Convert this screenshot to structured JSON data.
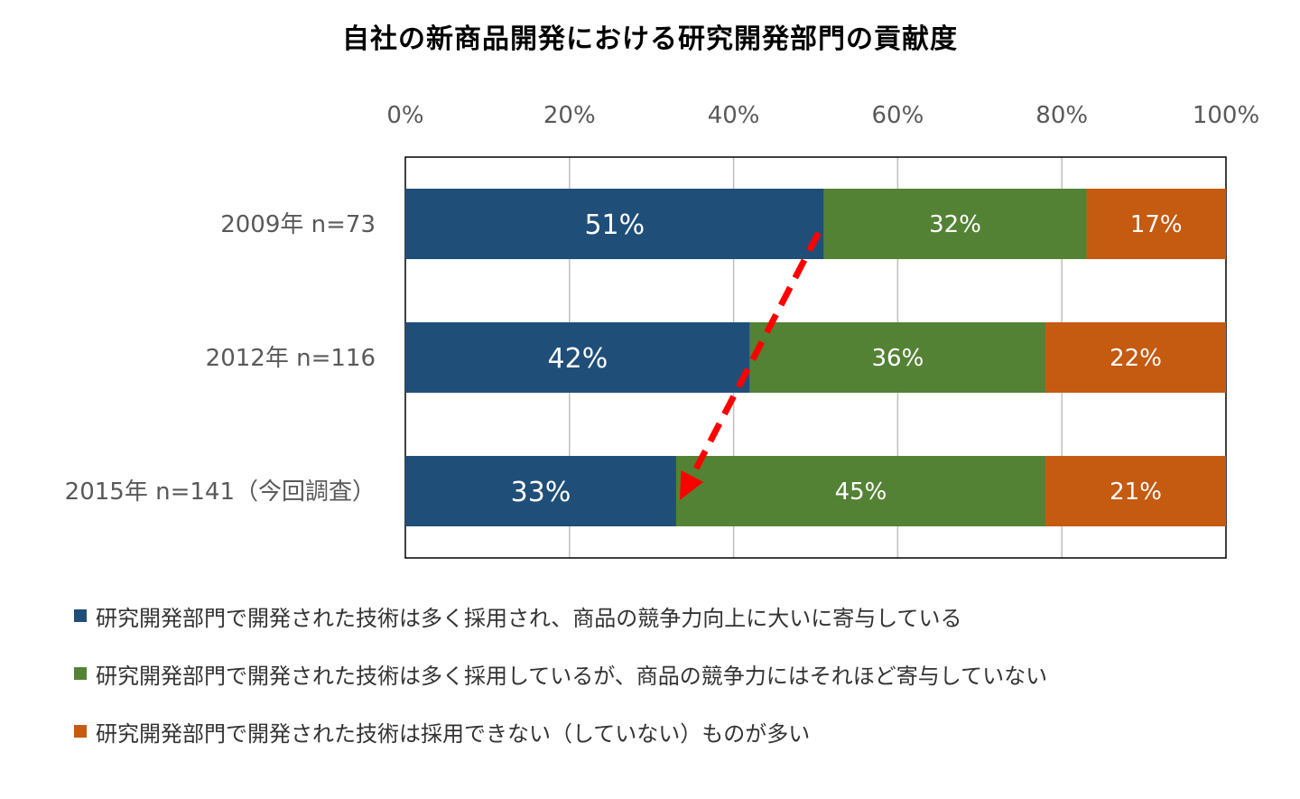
{
  "chart_data": {
    "type": "bar",
    "orientation": "horizontal",
    "stacked": true,
    "percent": true,
    "title": "自社の新商品開発における研究開発部門の貢献度",
    "categories": [
      "2009年 n=73",
      "2012年 n=116",
      "2015年 n=141（今回調査）"
    ],
    "xlim": [
      0,
      100
    ],
    "xticks": [
      "0%",
      "20%",
      "40%",
      "60%",
      "80%",
      "100%"
    ],
    "xaxis_position": "top",
    "grid": true,
    "legend_position": "bottom",
    "series": [
      {
        "name": "研究開発部門で開発された技術は多く採用され、商品の競争力向上に大いに寄与している",
        "values": [
          51,
          42,
          33
        ],
        "labels": [
          "51%",
          "42%",
          "33%"
        ],
        "color": "#1F4E79"
      },
      {
        "name": "研究開発部門で開発された技術は多く採用しているが、商品の競争力にはそれほど寄与していない",
        "values": [
          32,
          36,
          45
        ],
        "labels": [
          "32%",
          "36%",
          "45%"
        ],
        "color": "#548235"
      },
      {
        "name": "研究開発部門で開発された技術は採用できない（していない）ものが多い",
        "values": [
          17,
          22,
          21
        ],
        "labels": [
          "17%",
          "22%",
          "21%"
        ],
        "color": "#C55A11"
      }
    ],
    "annotations": [
      {
        "type": "dashed-arrow",
        "from": {
          "category_index": 0,
          "value": 51
        },
        "to": {
          "category_index": 2,
          "value": 33
        },
        "color": "#FF0000"
      }
    ]
  }
}
